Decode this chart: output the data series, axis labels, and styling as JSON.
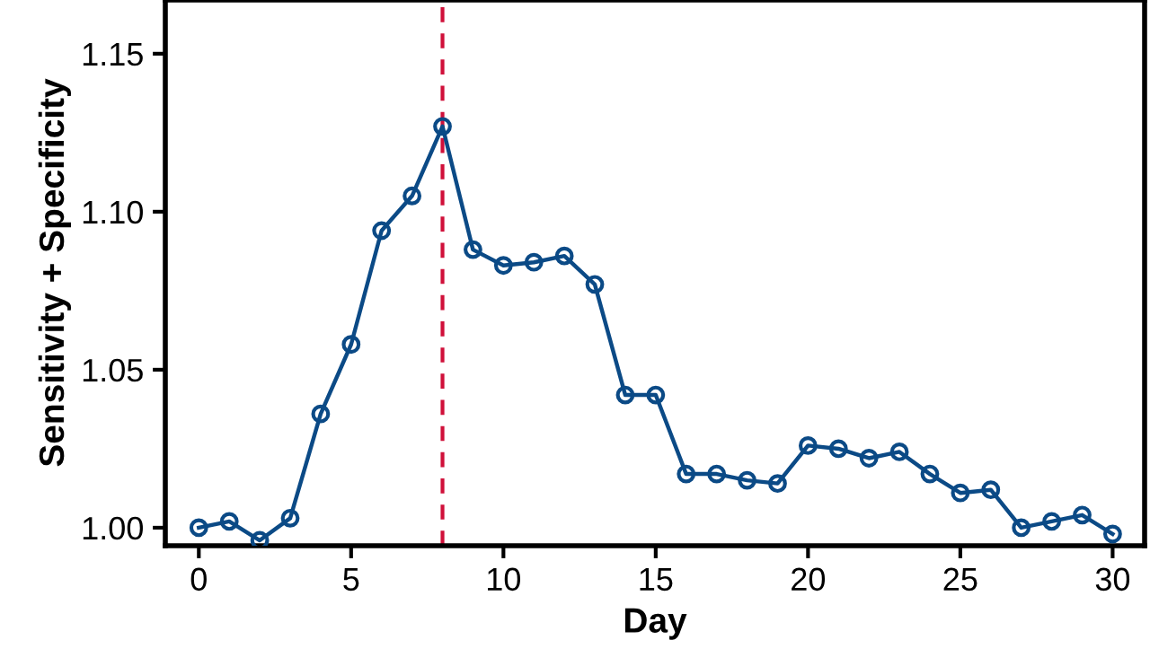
{
  "chart_data": {
    "type": "line",
    "xlabel": "Day",
    "ylabel": "Sensitivity + Specificity",
    "x": [
      0,
      1,
      2,
      3,
      4,
      5,
      6,
      7,
      8,
      9,
      10,
      11,
      12,
      13,
      14,
      15,
      16,
      17,
      18,
      19,
      20,
      21,
      22,
      23,
      24,
      25,
      26,
      27,
      28,
      29,
      30
    ],
    "series": [
      {
        "color": "#0b4a86",
        "values": [
          1.0,
          1.002,
          0.996,
          1.003,
          1.036,
          1.058,
          1.094,
          1.105,
          1.127,
          1.088,
          1.083,
          1.084,
          1.086,
          1.077,
          1.042,
          1.042,
          1.017,
          1.017,
          1.015,
          1.014,
          1.026,
          1.025,
          1.022,
          1.024,
          1.017,
          1.011,
          1.012,
          1.0,
          1.002,
          1.004,
          0.998
        ]
      }
    ],
    "xlim": [
      -1.1,
      31.05
    ],
    "xticks": [
      0,
      5,
      10,
      15,
      20,
      25,
      30
    ],
    "ylim": [
      0.9943,
      1.167
    ],
    "yticks": [
      {
        "value": 1.0,
        "label": "1.00"
      },
      {
        "value": 1.05,
        "label": "1.05"
      },
      {
        "value": 1.1,
        "label": "1.10"
      },
      {
        "value": 1.15,
        "label": "1.15"
      }
    ],
    "ref_lines": [
      {
        "axis": "x",
        "value": 8,
        "color": "#d0103a",
        "line_style": "dashed"
      }
    ],
    "marker": "circle",
    "line_style": "solid",
    "grid": false,
    "legend": false
  }
}
